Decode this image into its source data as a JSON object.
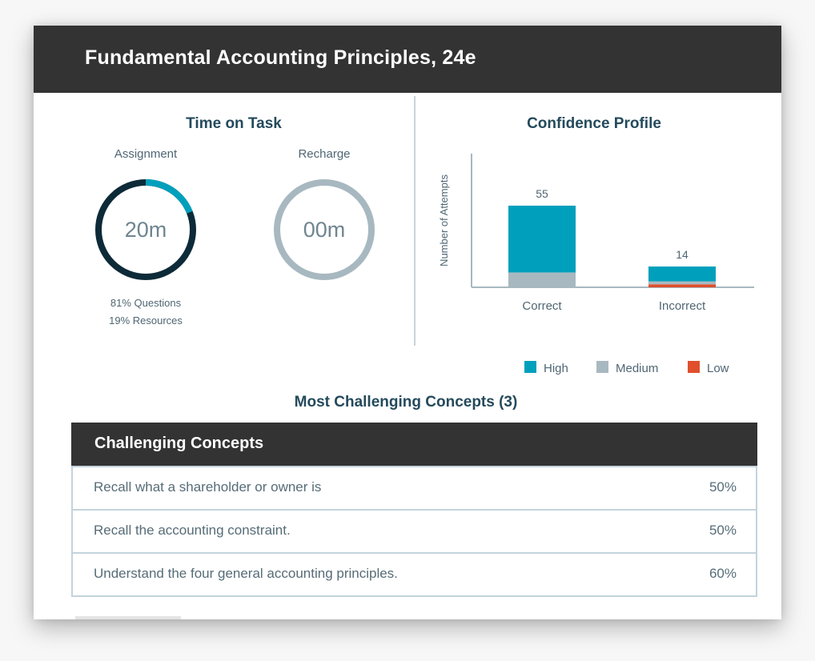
{
  "header": {
    "title": "Fundamental Accounting Principles, 24e"
  },
  "time_on_task": {
    "title": "Time on Task",
    "assignment": {
      "label": "Assignment",
      "value": "20m",
      "questions_fraction": 0.81,
      "legend_questions": "81% Questions",
      "legend_resources": "19% Resources"
    },
    "recharge": {
      "label": "Recharge",
      "value": "00m"
    }
  },
  "confidence_profile": {
    "title": "Confidence Profile"
  },
  "chart_data": {
    "type": "bar",
    "title": "Confidence Profile",
    "ylabel": "Number of Attempts",
    "xlabel": "",
    "categories": [
      "Correct",
      "Incorrect"
    ],
    "totals": [
      55,
      14
    ],
    "series": [
      {
        "name": "High",
        "color": "#00a0bc",
        "values": [
          45,
          10
        ]
      },
      {
        "name": "Medium",
        "color": "#a8b8c0",
        "values": [
          10,
          2
        ]
      },
      {
        "name": "Low",
        "color": "#e0502d",
        "values": [
          0,
          2
        ]
      }
    ],
    "ylim": [
      0,
      60
    ],
    "legend_position": "bottom",
    "grid": false
  },
  "concepts": {
    "title": "Most Challenging Concepts (3)",
    "table_header": "Challenging Concepts",
    "rows": [
      {
        "text": "Recall what a shareholder or owner is",
        "percent": "50%"
      },
      {
        "text": "Recall the accounting constraint.",
        "percent": "50%"
      },
      {
        "text": "Understand the four general accounting principles.",
        "percent": "60%"
      }
    ]
  },
  "colors": {
    "header_bg": "#333333",
    "accent": "#00a0bc",
    "ring_dark": "#0d2a38",
    "ring_gray": "#a8b8c0",
    "text": "#244a5c"
  }
}
